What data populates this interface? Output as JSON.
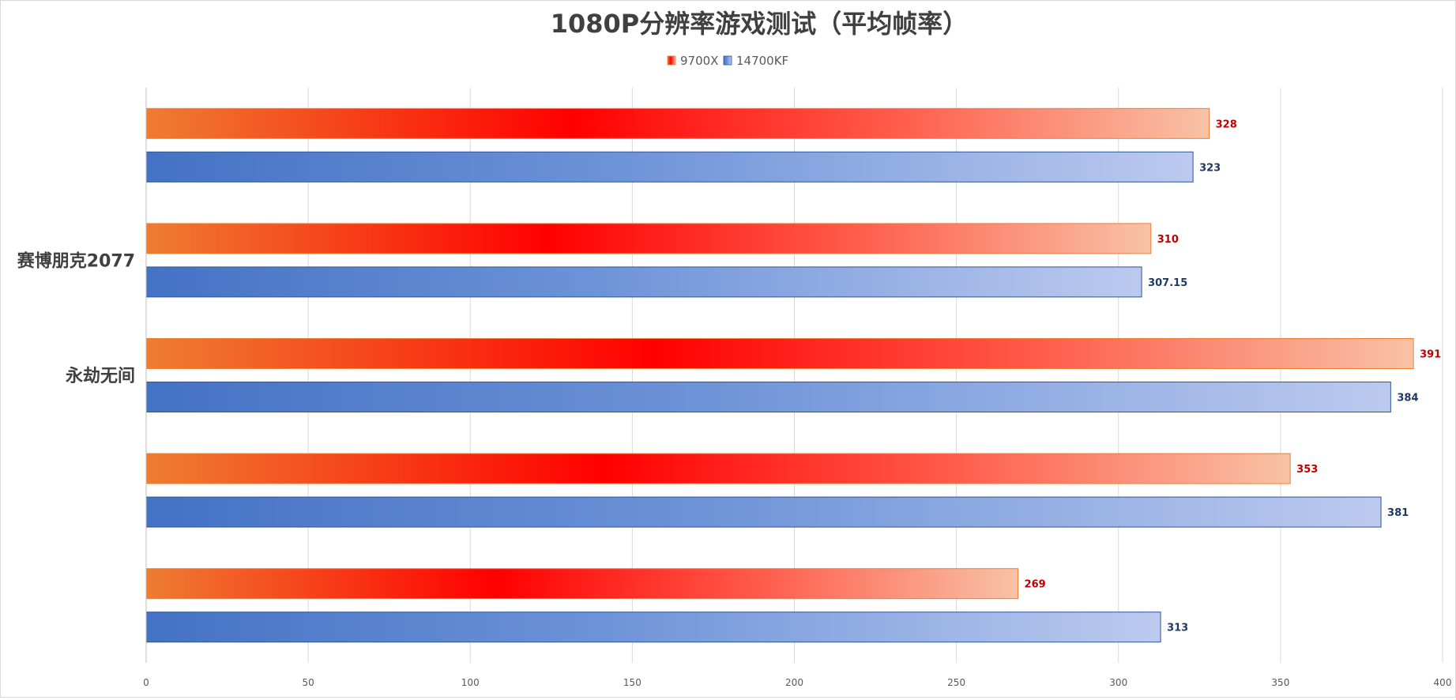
{
  "chart_data": {
    "type": "bar",
    "orientation": "horizontal",
    "title": "1080P分辨率游戏测试（平均帧率）",
    "categories": [
      "",
      "赛博朋克2077",
      "永劫无间",
      "",
      ""
    ],
    "series": [
      {
        "name": "9700X",
        "values": [
          328,
          310,
          391,
          353,
          269
        ],
        "color": "#ff0000",
        "label_color": "#c00000"
      },
      {
        "name": "14700KF",
        "values": [
          323,
          307.15,
          384,
          381,
          313
        ],
        "color": "#4472c4",
        "label_color": "#1f3864"
      }
    ],
    "value_labels": [
      [
        "328",
        "310",
        "391",
        "353",
        "269"
      ],
      [
        "323",
        "307.15",
        "384",
        "381",
        "313"
      ]
    ],
    "xlim": [
      0,
      400
    ],
    "xticks": [
      0,
      50,
      100,
      150,
      200,
      250,
      300,
      350,
      400
    ],
    "xtick_labels": [
      "0",
      "50",
      "100",
      "150",
      "200",
      "250",
      "300",
      "350",
      "400"
    ],
    "grid": true,
    "legend": "top-center"
  }
}
